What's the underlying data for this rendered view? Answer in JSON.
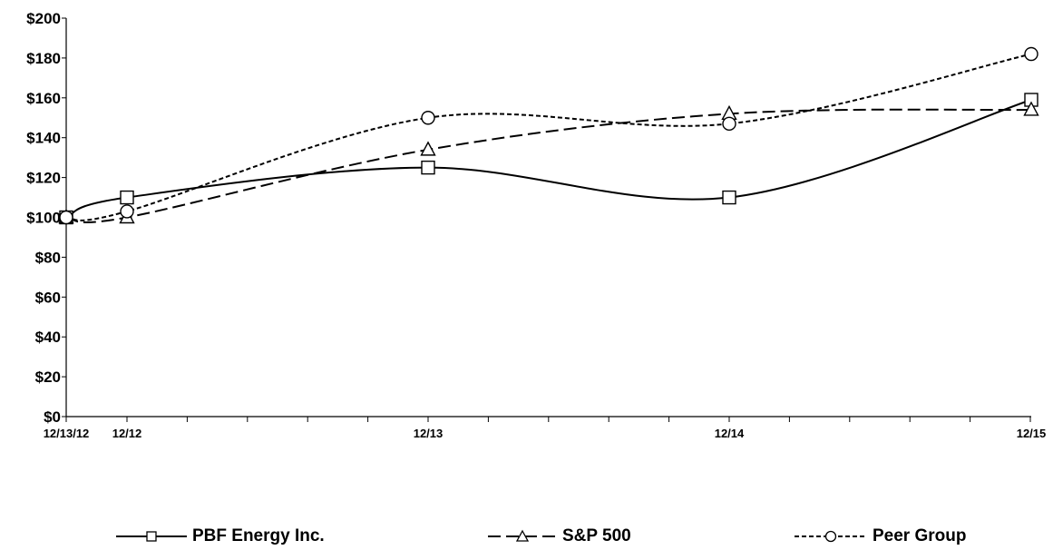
{
  "chart_data": {
    "type": "line",
    "title": "",
    "xlabel": "",
    "ylabel": "",
    "x_labels": [
      "12/13/12",
      "12/12",
      "12/13",
      "12/14",
      "12/15"
    ],
    "y_ticks": [
      "$0",
      "$20",
      "$40",
      "$60",
      "$80",
      "$100",
      "$120",
      "$140",
      "$160",
      "$180",
      "$200"
    ],
    "ylim": [
      0,
      200
    ],
    "grid": false,
    "legend_position": "bottom",
    "series": [
      {
        "name": "PBF Energy Inc.",
        "marker": "square",
        "dash": "solid",
        "values": [
          100,
          110,
          125,
          110,
          159
        ]
      },
      {
        "name": "S&P 500",
        "marker": "triangle",
        "dash": "long-dash",
        "values": [
          100,
          100,
          134,
          152,
          154
        ]
      },
      {
        "name": "Peer Group",
        "marker": "circle",
        "dash": "short-dash",
        "values": [
          100,
          103,
          150,
          147,
          182
        ]
      }
    ]
  }
}
